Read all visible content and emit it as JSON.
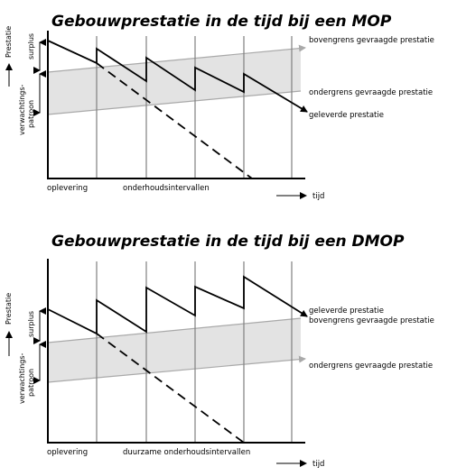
{
  "diagrams": [
    {
      "title": "Gebouwprestatie in de tijd bij een MOP",
      "y_axis_label": "Prestatie",
      "left_label_upper": "surplus",
      "left_label_lower_1": "verwachtings-",
      "left_label_lower_2": "patroon",
      "right_label_1": "bovengrens gevraagde prestatie",
      "right_label_2": "ondergrens gevraagde prestatie",
      "right_label_3": "geleverde prestatie",
      "x_label_left": "oplevering",
      "x_label_mid": "onderhoudsintervallen",
      "time_label": "tijd"
    },
    {
      "title": "Gebouwprestatie in de tijd bij een DMOP",
      "y_axis_label": "Prestatie",
      "left_label_upper": "surplus",
      "left_label_lower_1": "verwachtings-",
      "left_label_lower_2": "patroon",
      "right_label_1": "geleverde prestatie",
      "right_label_2": "bovengrens gevraagde prestatie",
      "right_label_3": "ondergrens gevraagde prestatie",
      "x_label_left": "oplevering",
      "x_label_mid": "duurzame onderhoudsintervallen",
      "time_label": "tijd"
    }
  ],
  "colors": {
    "band": "#e3e3e3",
    "band_edge": "#a9a9a9",
    "grid": "#808080",
    "ink": "#000000"
  }
}
